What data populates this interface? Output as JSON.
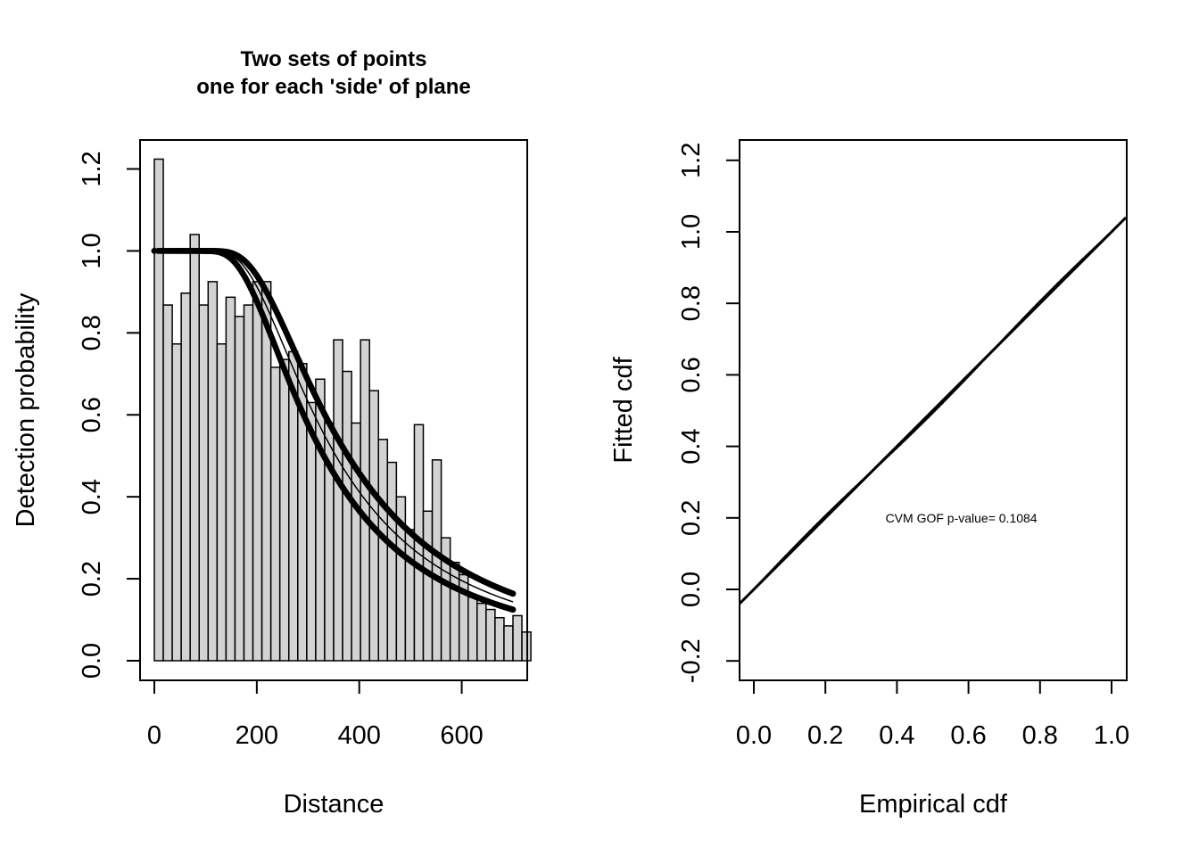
{
  "chart_data": [
    {
      "type": "bar",
      "title": "Two sets of points\none for each 'side' of plane",
      "title_lines": [
        "Two sets of points",
        "one for each 'side' of plane"
      ],
      "xlabel": "Distance",
      "ylabel": "Detection probability",
      "xlim": [
        0,
        700
      ],
      "ylim": [
        0,
        1.25
      ],
      "xticks": [
        "0",
        "200",
        "400",
        "600"
      ],
      "xtick_values": [
        0,
        200,
        400,
        600
      ],
      "yticks": [
        "0.0",
        "0.2",
        "0.4",
        "0.6",
        "0.8",
        "1.0",
        "1.2"
      ],
      "ytick_values": [
        0,
        0.2,
        0.4,
        0.6,
        0.8,
        1.0,
        1.2
      ],
      "bin_width": 17.5,
      "bins_start": 0,
      "values": [
        1.224,
        0.868,
        0.773,
        0.897,
        1.04,
        0.868,
        0.925,
        0.773,
        0.887,
        0.84,
        0.868,
        0.925,
        0.925,
        0.716,
        0.735,
        0.754,
        0.725,
        0.63,
        0.687,
        0.58,
        0.783,
        0.706,
        0.58,
        0.783,
        0.659,
        0.54,
        0.484,
        0.4,
        0.32,
        0.576,
        0.365,
        0.49,
        0.3,
        0.24,
        0.21,
        0.155,
        0.14,
        0.125,
        0.105,
        0.085,
        0.11,
        0.07
      ],
      "series": [
        {
          "kind": "points",
          "scale": 280,
          "shape": 2.2,
          "from": 0,
          "to": 700
        },
        {
          "kind": "points",
          "scale": 320,
          "shape": 2.2,
          "from": 0,
          "to": 700
        },
        {
          "kind": "line",
          "scale": 300,
          "shape": 2.2,
          "from": 0,
          "to": 700
        }
      ]
    },
    {
      "type": "scatter",
      "xlabel": "Empirical cdf",
      "ylabel": "Fitted cdf",
      "xlim": [
        -0.04,
        1.04
      ],
      "ylim": [
        -0.25,
        1.25
      ],
      "xticks": [
        "0.0",
        "0.2",
        "0.4",
        "0.6",
        "0.8",
        "1.0"
      ],
      "xtick_values": [
        0,
        0.2,
        0.4,
        0.6,
        0.8,
        1.0
      ],
      "yticks": [
        "-0.2",
        "0.0",
        "0.2",
        "0.4",
        "0.6",
        "0.8",
        "1.0",
        "1.2"
      ],
      "ytick_values": [
        -0.2,
        0,
        0.2,
        0.4,
        0.6,
        0.8,
        1.0,
        1.2
      ],
      "reference_line": {
        "intercept": 0,
        "slope": 1
      },
      "annotation": "CVM GOF p-value= 0.1084",
      "annotation_pos": [
        0.58,
        0.2
      ]
    }
  ]
}
